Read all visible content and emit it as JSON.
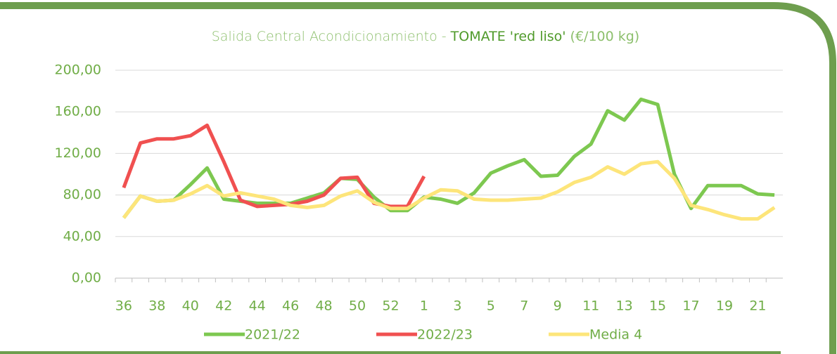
{
  "chart_data": {
    "type": "line",
    "title": [
      "Salida Central Acondicionamiento - ",
      "TOMATE 'red liso'",
      " (€/100 kg)"
    ],
    "categories": [
      "36",
      null,
      "38",
      null,
      "40",
      null,
      "42",
      null,
      "44",
      null,
      "46",
      null,
      "48",
      null,
      "50",
      null,
      "52",
      null,
      "1",
      null,
      "3",
      null,
      "5",
      null,
      "7",
      null,
      "9",
      null,
      "11",
      null,
      "13",
      null,
      "15",
      null,
      "17",
      null,
      "19",
      null,
      "21",
      null
    ],
    "series": [
      {
        "name": "2021/22",
        "color": "#7dc850",
        "values": [
          58,
          79,
          74,
          75,
          90,
          106,
          76,
          74,
          72,
          72,
          72,
          77,
          82,
          96,
          95,
          78,
          65,
          65,
          78,
          76,
          72,
          82,
          101,
          108,
          114,
          98,
          99,
          117,
          129,
          161,
          152,
          172,
          167,
          100,
          67,
          89,
          89,
          89,
          81,
          80
        ]
      },
      {
        "name": "2022/23",
        "color": "#f05050",
        "values": [
          87,
          130,
          134,
          134,
          137,
          147,
          112,
          75,
          69,
          70,
          71,
          74,
          80,
          96,
          97,
          72,
          69,
          69,
          98,
          null,
          null,
          null,
          null,
          null,
          null,
          null,
          null,
          null,
          null,
          null,
          null,
          null,
          null,
          null,
          null,
          null,
          null,
          null,
          null,
          null
        ]
      },
      {
        "name": "Media 4",
        "color": "#fde57a",
        "values": [
          58,
          79,
          74,
          75,
          81,
          89,
          79,
          82,
          79,
          76,
          70,
          68,
          70,
          79,
          84,
          73,
          67,
          67,
          77,
          85,
          84,
          76,
          75,
          75,
          76,
          77,
          83,
          92,
          97,
          107,
          100,
          110,
          112,
          96,
          70,
          66,
          61,
          57,
          57,
          68
        ]
      }
    ],
    "ylim": [
      0,
      200
    ],
    "yticks": [
      {
        "value": 0,
        "label": "0,00"
      },
      {
        "value": 40,
        "label": "40,00"
      },
      {
        "value": 80,
        "label": "80,00"
      },
      {
        "value": 120,
        "label": "120,00"
      },
      {
        "value": 160,
        "label": "160,00"
      },
      {
        "value": 200,
        "label": "200,00"
      }
    ],
    "grid": true,
    "legend": "bottom"
  }
}
